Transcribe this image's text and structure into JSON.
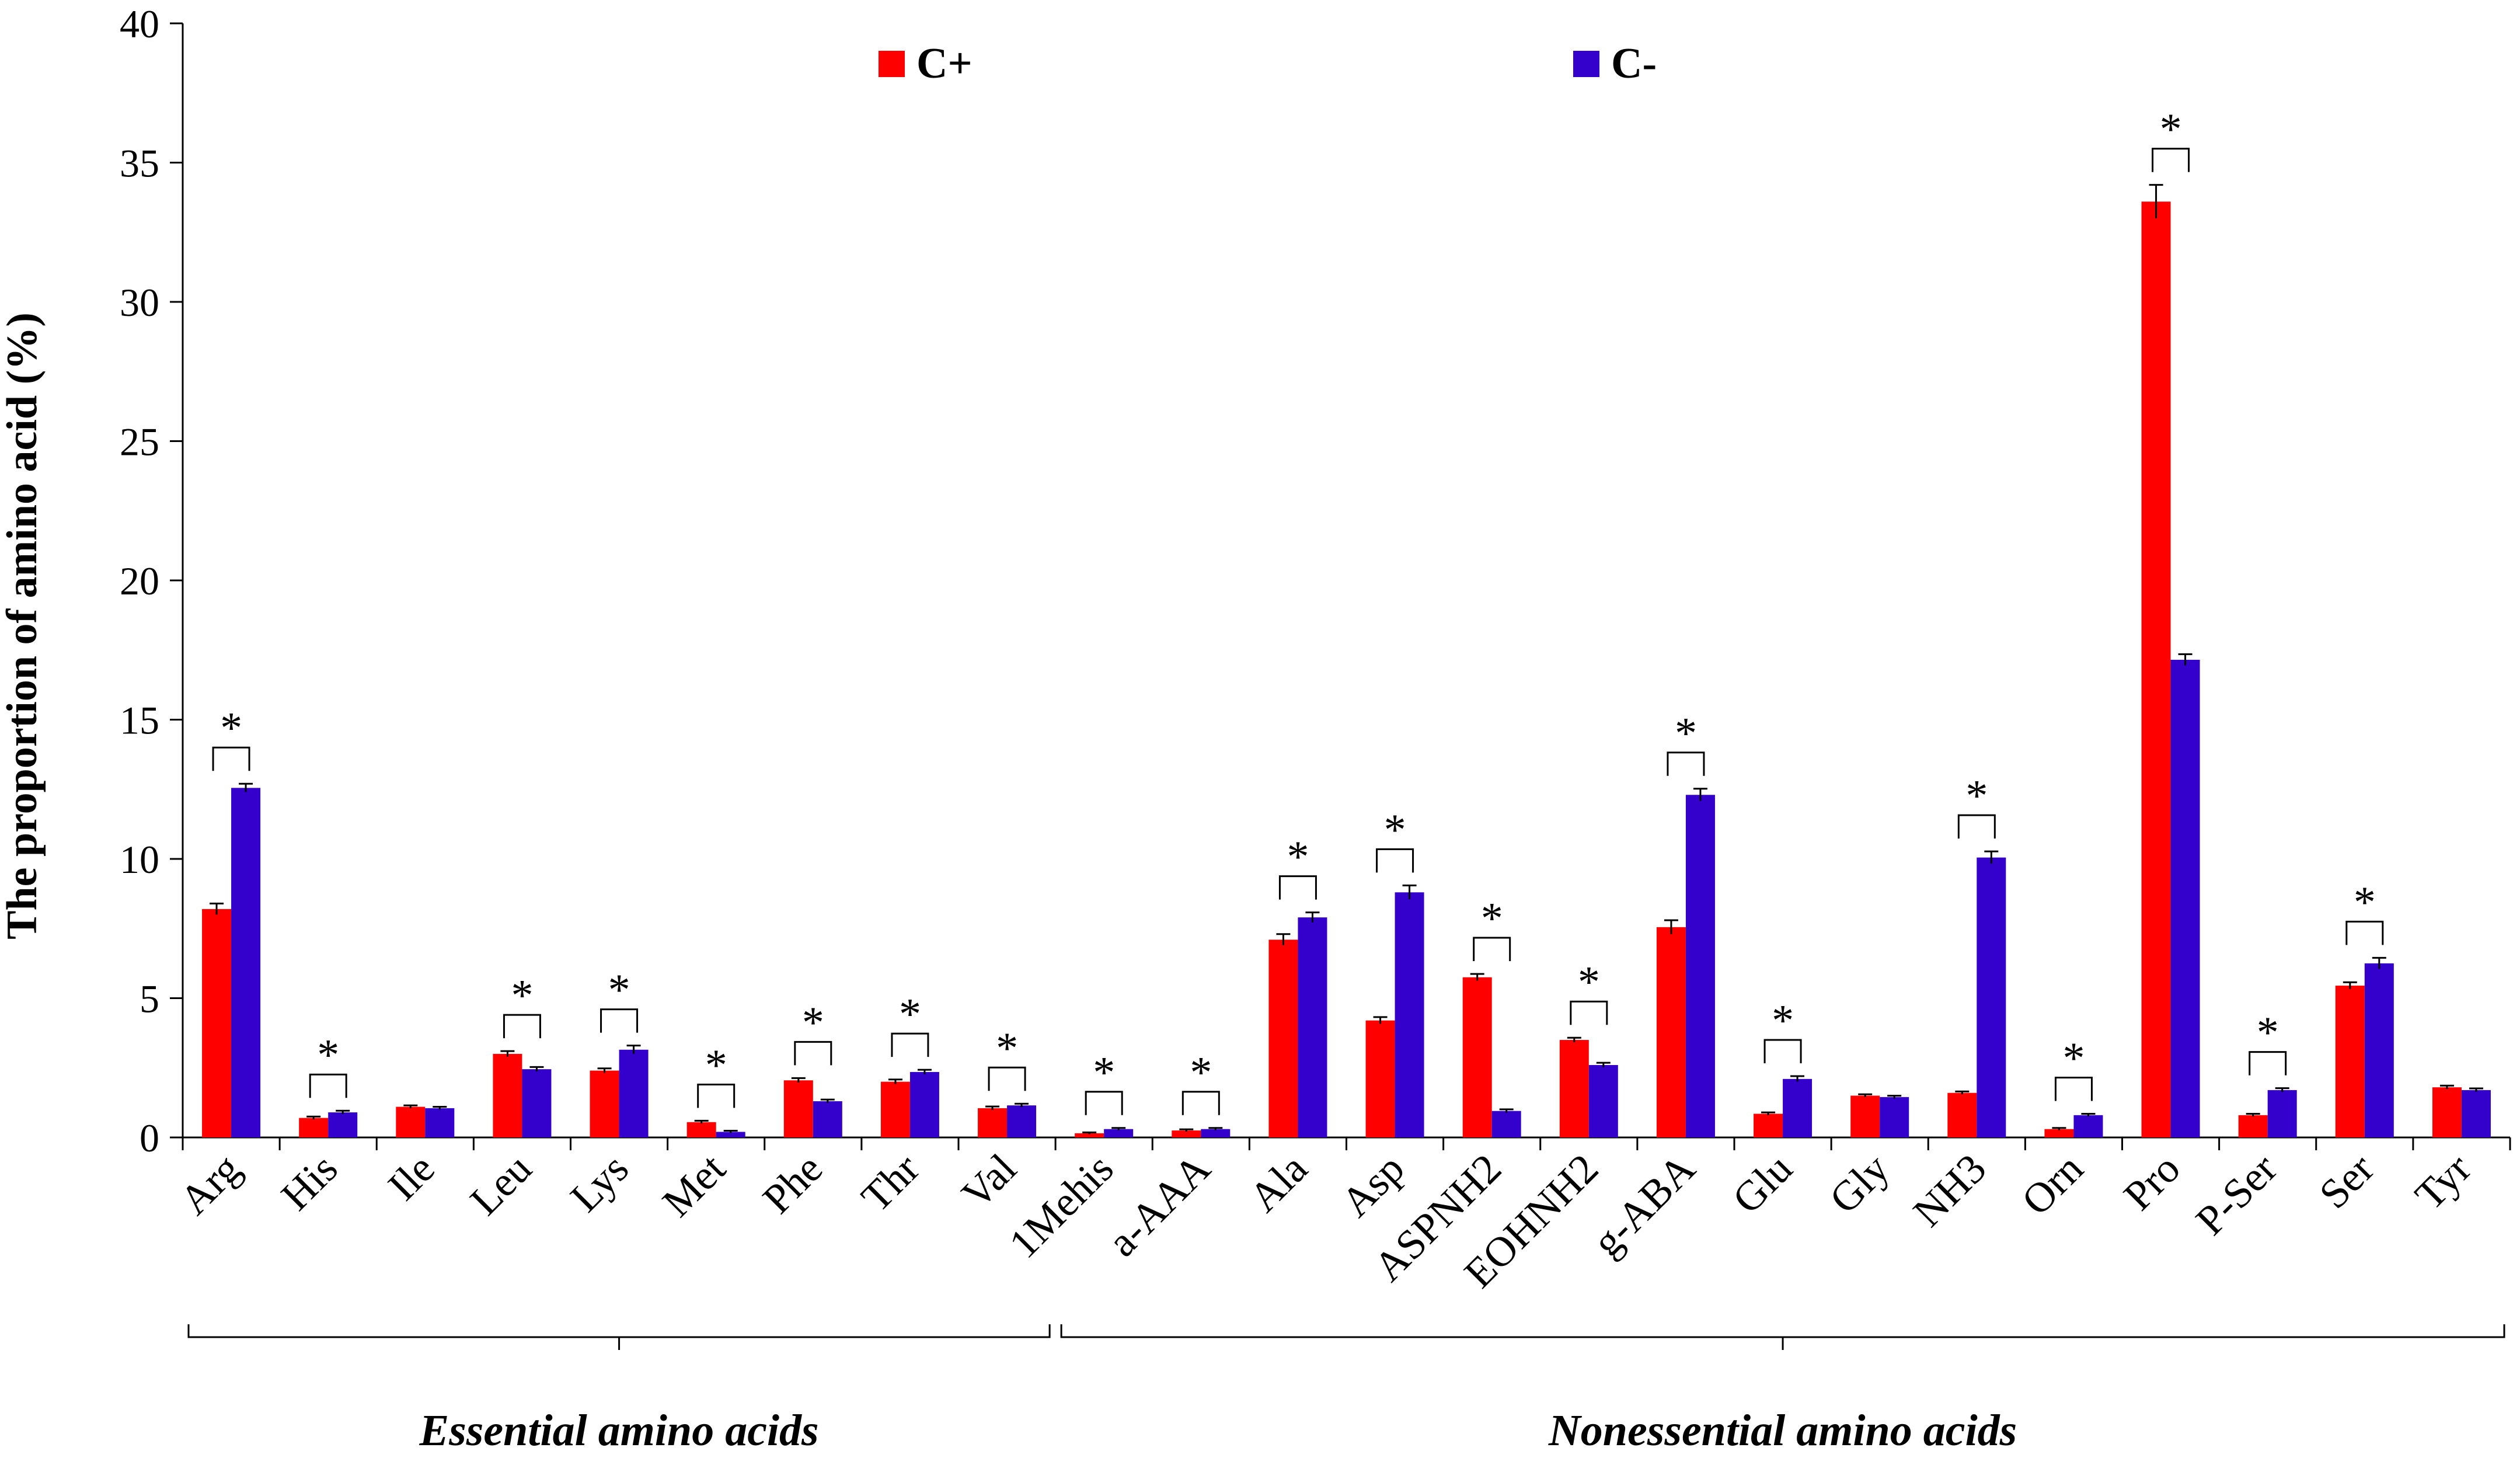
{
  "chart_data": {
    "type": "bar",
    "title": "",
    "xlabel": "",
    "ylabel": "The proportion of amino acid (%)",
    "ylim": [
      0,
      40
    ],
    "yticks": [
      "0",
      "5",
      "10",
      "15",
      "20",
      "25",
      "30",
      "35",
      "40"
    ],
    "grid": false,
    "legend_position": "top",
    "categories": [
      "Arg",
      "His",
      "Ile",
      "Leu",
      "Lys",
      "Met",
      "Phe",
      "Thr",
      "Val",
      "1Mehis",
      "a-AAA",
      "Ala",
      "Asp",
      "ASPNH2",
      "EOHNH2",
      "g-ABA",
      "Glu",
      "Gly",
      "NH3",
      "Orn",
      "Pro",
      "P-Ser",
      "Ser",
      "Tyr"
    ],
    "series": [
      {
        "name": "C+",
        "color": "#ff0000",
        "values": [
          8.2,
          0.7,
          1.1,
          3.0,
          2.4,
          0.55,
          2.05,
          2.0,
          1.05,
          0.15,
          0.25,
          7.1,
          4.2,
          5.75,
          3.5,
          7.55,
          0.85,
          1.5,
          1.6,
          0.3,
          33.6,
          0.8,
          5.45,
          1.8
        ],
        "errors": [
          0.2,
          0.05,
          0.05,
          0.1,
          0.08,
          0.05,
          0.08,
          0.08,
          0.06,
          0.03,
          0.04,
          0.2,
          0.12,
          0.12,
          0.08,
          0.25,
          0.05,
          0.05,
          0.05,
          0.04,
          0.6,
          0.05,
          0.12,
          0.06
        ]
      },
      {
        "name": "C-",
        "color": "#3300cc",
        "values": [
          12.55,
          0.9,
          1.05,
          2.45,
          3.15,
          0.2,
          1.3,
          2.35,
          1.15,
          0.3,
          0.3,
          7.9,
          8.8,
          0.95,
          2.6,
          12.3,
          2.1,
          1.45,
          10.05,
          0.8,
          17.15,
          1.7,
          6.25,
          1.7
        ],
        "errors": [
          0.15,
          0.06,
          0.05,
          0.08,
          0.15,
          0.04,
          0.06,
          0.08,
          0.06,
          0.04,
          0.04,
          0.18,
          0.25,
          0.06,
          0.08,
          0.22,
          0.1,
          0.05,
          0.22,
          0.05,
          0.2,
          0.07,
          0.2,
          0.06
        ]
      }
    ],
    "significance": {
      "marker": "*",
      "categories": [
        "Arg",
        "His",
        "Leu",
        "Lys",
        "Met",
        "Phe",
        "Thr",
        "Val",
        "1Mehis",
        "a-AAA",
        "Ala",
        "Asp",
        "ASPNH2",
        "EOHNH2",
        "g-ABA",
        "Glu",
        "NH3",
        "Orn",
        "Pro",
        "P-Ser",
        "Ser"
      ]
    },
    "groups": [
      {
        "label": "Essential amino acids",
        "start": "Arg",
        "end": "Val"
      },
      {
        "label": "Nonessential amino acids",
        "start": "1Mehis",
        "end": "Tyr"
      }
    ]
  }
}
